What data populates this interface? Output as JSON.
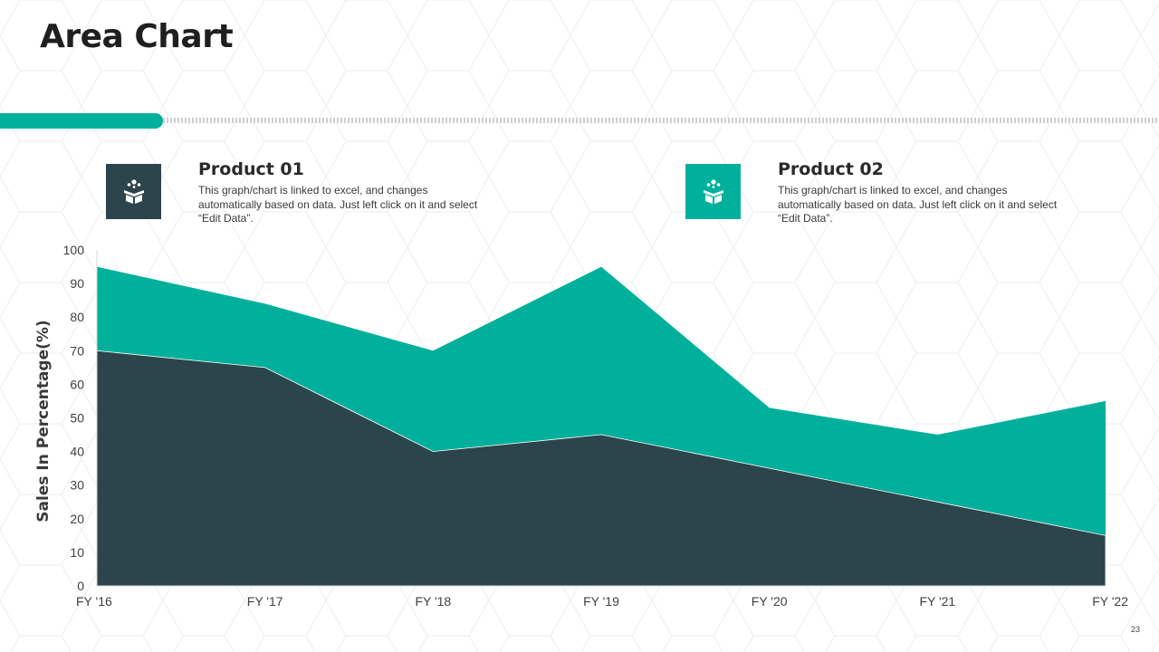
{
  "page": {
    "title": "Area Chart",
    "page_number": "23"
  },
  "colors": {
    "accent": "#00b09b",
    "dark": "#2c444b"
  },
  "legend": [
    {
      "name": "Product 01",
      "description": "This graph/chart is linked to excel, and changes automatically based on data. Just left click on it and select “Edit Data”.",
      "color": "#2c444b",
      "icon": "gift-box-icon"
    },
    {
      "name": "Product 02",
      "description": "This graph/chart is linked to excel, and changes automatically based on data. Just left click on it and select “Edit Data”.",
      "color": "#00b09b",
      "icon": "gift-box-icon"
    }
  ],
  "chart_data": {
    "type": "area",
    "stacked": false,
    "categories": [
      "FY '16",
      "FY '17",
      "FY '18",
      "FY '19",
      "FY '20",
      "FY '21",
      "FY '22"
    ],
    "series": [
      {
        "name": "Product 02",
        "values": [
          95,
          84,
          70,
          95,
          53,
          45,
          55
        ],
        "color": "#00b09b"
      },
      {
        "name": "Product 01",
        "values": [
          70,
          65,
          40,
          45,
          35,
          25,
          15
        ],
        "color": "#2c444b"
      }
    ],
    "ylabel": "Sales In Percentage(%)",
    "xlabel": "",
    "ylim": [
      0,
      100
    ],
    "yticks": [
      0,
      10,
      20,
      30,
      40,
      50,
      60,
      70,
      80,
      90,
      100
    ],
    "grid": false,
    "legend_position": "top"
  }
}
